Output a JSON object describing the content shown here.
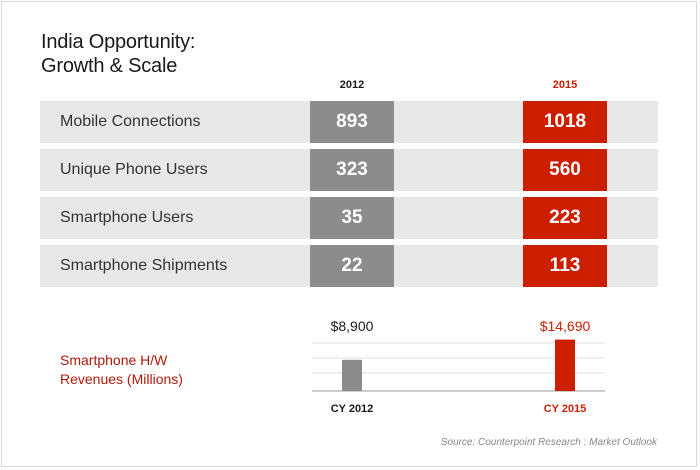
{
  "title_line1": "India Opportunity:",
  "title_line2": "Growth & Scale",
  "colors": {
    "y2012": "#8c8c8c",
    "y2015": "#cc1f00",
    "row_bg": "#e8e8e8"
  },
  "chart_data": [
    {
      "type": "table",
      "columns": [
        "2012",
        "2015"
      ],
      "rows": [
        {
          "label": "Mobile Connections",
          "values": [
            "893",
            "1018"
          ]
        },
        {
          "label": "Unique Phone Users",
          "values": [
            "323",
            "560"
          ]
        },
        {
          "label": "Smartphone Users",
          "values": [
            "35",
            "223"
          ]
        },
        {
          "label": "Smartphone Shipments",
          "values": [
            "22",
            "113"
          ]
        }
      ]
    },
    {
      "type": "bar",
      "ylabel_line1": "Smartphone H/W",
      "ylabel_line2": "Revenues (Millions)",
      "categories": [
        "CY 2012",
        "CY 2015"
      ],
      "values": [
        8900,
        14690
      ],
      "value_labels": [
        "$8,900",
        "$14,690"
      ],
      "ylim": [
        0,
        16000
      ]
    }
  ],
  "source": "Source: Counterpoint Research : Market Outlook"
}
